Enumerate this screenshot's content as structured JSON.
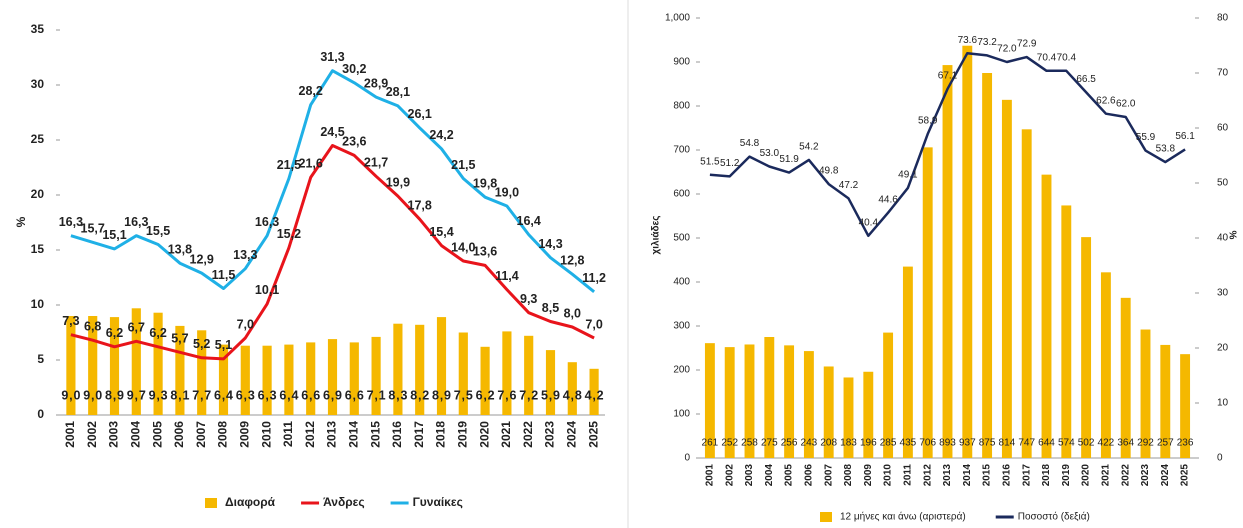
{
  "chart_data": [
    {
      "type": "bar_line",
      "categories": [
        "2001",
        "2002",
        "2003",
        "2004",
        "2005",
        "2006",
        "2007",
        "2008",
        "2009",
        "2010",
        "2011",
        "2012",
        "2013",
        "2014",
        "2015",
        "2016",
        "2017",
        "2018",
        "2019",
        "2020",
        "2021",
        "2022",
        "2023",
        "2024",
        "2025"
      ],
      "ylim": [
        0,
        35
      ],
      "yticks": [
        0,
        5,
        10,
        15,
        20,
        25,
        30,
        35
      ],
      "y_label": "%",
      "grid": false,
      "series": [
        {
          "name": "Διαφορά",
          "type": "bar",
          "color": "#f5b800",
          "values": [
            9.0,
            9.0,
            8.9,
            9.7,
            9.3,
            8.1,
            7.7,
            6.4,
            6.3,
            6.3,
            6.4,
            6.6,
            6.9,
            6.6,
            7.1,
            8.3,
            8.2,
            8.9,
            7.5,
            6.2,
            7.6,
            7.2,
            5.9,
            4.8,
            4.2
          ],
          "value_labels": [
            "9,0",
            "9,0",
            "8,9",
            "9,7",
            "9,3",
            "8,1",
            "7,7",
            "6,4",
            "6,3",
            "6,3",
            "6,4",
            "6,6",
            "6,9",
            "6,6",
            "7,1",
            "8,3",
            "8,2",
            "8,9",
            "7,5",
            "6,2",
            "7,6",
            "7,2",
            "5,9",
            "4,8",
            "4,2"
          ]
        },
        {
          "name": "Άνδρες",
          "type": "line",
          "color": "#e8141b",
          "values": [
            7.3,
            6.8,
            6.2,
            6.7,
            6.2,
            5.7,
            5.2,
            5.1,
            7.0,
            10.1,
            15.2,
            21.6,
            24.5,
            23.6,
            21.7,
            19.9,
            17.8,
            15.4,
            14.0,
            13.6,
            11.4,
            9.3,
            8.5,
            8.0,
            7.0
          ],
          "value_labels": [
            "7,3",
            "6,8",
            "6,2",
            "6,7",
            "6,2",
            "5,7",
            "5,2",
            "5,1",
            "7,0",
            "10,1",
            "15,2",
            "21,6",
            "24,5",
            "23,6",
            "21,7",
            "19,9",
            "17,8",
            "15,4",
            "14,0",
            "13,6",
            "11,4",
            "9,3",
            "8,5",
            "8,0",
            "7,0"
          ]
        },
        {
          "name": "Γυναίκες",
          "type": "line",
          "color": "#1fb0e6",
          "values": [
            16.3,
            15.7,
            15.1,
            16.3,
            15.5,
            13.8,
            12.9,
            11.5,
            13.3,
            16.3,
            21.5,
            28.2,
            31.3,
            30.2,
            28.9,
            28.1,
            26.1,
            24.2,
            21.5,
            19.8,
            19.0,
            16.4,
            14.3,
            12.8,
            11.2
          ],
          "value_labels": [
            "16,3",
            "15,7",
            "15,1",
            "16,3",
            "15,5",
            "13,8",
            "12,9",
            "11,5",
            "13,3",
            "16,3",
            "21,5",
            "28,2",
            "31,3",
            "30,2",
            "28,9",
            "28,1",
            "26,1",
            "24,2",
            "21,5",
            "19,8",
            "19,0",
            "16,4",
            "14,3",
            "12,8",
            "11,2"
          ]
        }
      ]
    },
    {
      "type": "bar_line",
      "categories": [
        "2001",
        "2002",
        "2003",
        "2004",
        "2005",
        "2006",
        "2007",
        "2008",
        "2009",
        "2010",
        "2011",
        "2012",
        "2013",
        "2014",
        "2015",
        "2016",
        "2017",
        "2018",
        "2019",
        "2020",
        "2021",
        "2022",
        "2023",
        "2024",
        "2025"
      ],
      "ylim": [
        0,
        1000
      ],
      "yticks": [
        0,
        100,
        200,
        300,
        400,
        500,
        600,
        700,
        800,
        900,
        {
          "value": 1000,
          "label": "1,000"
        }
      ],
      "y2lim": [
        0,
        80
      ],
      "y2ticks": [
        0,
        10,
        20,
        30,
        40,
        50,
        60,
        70,
        80
      ],
      "y_label": "χιλιάδες",
      "y2_label": "%",
      "grid": false,
      "series": [
        {
          "name": "12 μήνες και άνω (αριστερά)",
          "type": "bar",
          "color": "#f5b800",
          "values": [
            261,
            252,
            258,
            275,
            256,
            243,
            208,
            183,
            196,
            285,
            435,
            706,
            893,
            937,
            875,
            814,
            747,
            644,
            574,
            502,
            422,
            364,
            292,
            257,
            236
          ]
        },
        {
          "name": "Ποσοστό (δεξιά)",
          "type": "line",
          "axis": "y2",
          "color": "#1b2a5c",
          "values": [
            51.5,
            51.2,
            54.8,
            53.0,
            51.9,
            54.2,
            49.8,
            47.2,
            40.4,
            44.6,
            49.1,
            58.9,
            67.1,
            73.6,
            73.2,
            72.0,
            72.9,
            70.4,
            70.4,
            66.5,
            62.6,
            62.0,
            55.9,
            53.8,
            56.1
          ],
          "value_labels": [
            "51.5",
            "51.2",
            "54.8",
            "53.0",
            "51.9",
            "54.2",
            "49.8",
            "47.2",
            "40.4",
            "44.6",
            "49.1",
            "58.9",
            "67.1",
            "73.6",
            "73.2",
            "72.0",
            "72.9",
            "70.4",
            "70.4",
            "66.5",
            "62.6",
            "62.0",
            "55.9",
            "53.8",
            "56.1"
          ]
        }
      ]
    }
  ]
}
